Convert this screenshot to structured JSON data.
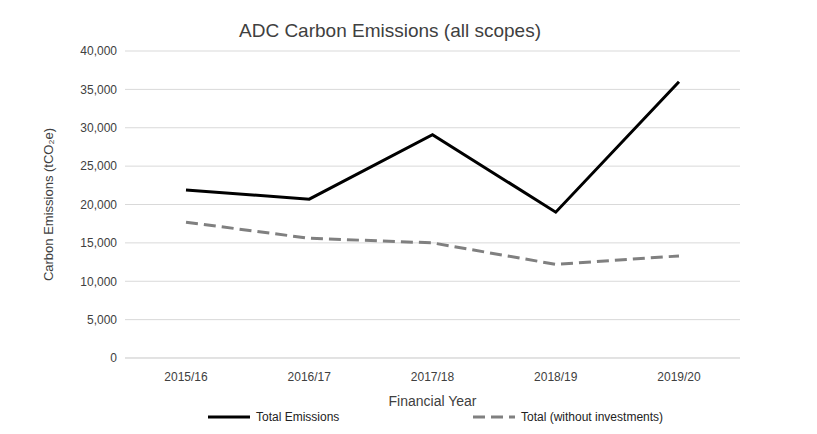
{
  "chart_data": {
    "type": "line",
    "title": "ADC Carbon Emissions (all scopes)",
    "x_label": "Financial Year",
    "y_label": "Carbon Emissions (tCO₂e)",
    "categories": [
      "2015/16",
      "2016/17",
      "2017/18",
      "2018/19",
      "2019/20"
    ],
    "series": [
      {
        "name": "Total Emissions",
        "color": "#000000",
        "line_style": "solid",
        "marker": "none",
        "values": [
          21900,
          20700,
          29100,
          19000,
          36000
        ]
      },
      {
        "name": "Total (without investments)",
        "color": "#808080",
        "line_style": "dashed",
        "marker": "none",
        "values": [
          17700,
          15600,
          15000,
          12200,
          13300
        ]
      }
    ],
    "ylim": [
      0,
      40000
    ],
    "yticks": [
      0,
      {
        "value": 5000,
        "label": "5,000"
      },
      {
        "value": 10000,
        "label": "10,000"
      },
      {
        "value": 15000,
        "label": "15,000"
      },
      {
        "value": 20000,
        "label": "20,000"
      },
      {
        "value": 25000,
        "label": "25,000"
      },
      {
        "value": 30000,
        "label": "30,000"
      },
      {
        "value": 35000,
        "label": "35,000"
      },
      {
        "value": 40000,
        "label": "40,000"
      }
    ],
    "grid": true,
    "legend": "bottom"
  }
}
